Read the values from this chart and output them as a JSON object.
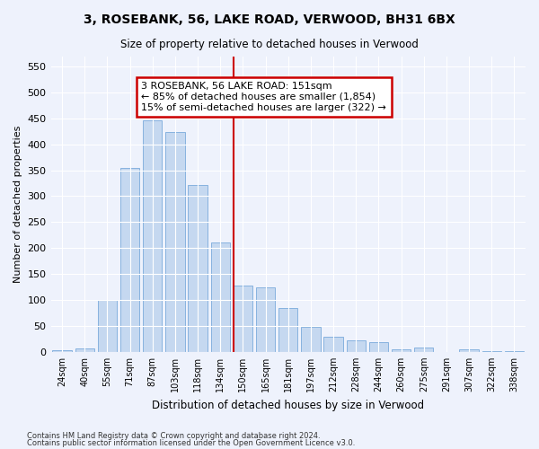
{
  "title": "3, ROSEBANK, 56, LAKE ROAD, VERWOOD, BH31 6BX",
  "subtitle": "Size of property relative to detached houses in Verwood",
  "xlabel": "Distribution of detached houses by size in Verwood",
  "ylabel": "Number of detached properties",
  "categories": [
    "24sqm",
    "40sqm",
    "55sqm",
    "71sqm",
    "87sqm",
    "103sqm",
    "118sqm",
    "134sqm",
    "150sqm",
    "165sqm",
    "181sqm",
    "197sqm",
    "212sqm",
    "228sqm",
    "244sqm",
    "260sqm",
    "275sqm",
    "291sqm",
    "307sqm",
    "322sqm",
    "338sqm"
  ],
  "values": [
    3,
    7,
    100,
    354,
    447,
    423,
    321,
    210,
    128,
    125,
    85,
    48,
    29,
    22,
    18,
    5,
    9,
    0,
    4,
    1,
    2
  ],
  "bar_color": "#c5d8f0",
  "bar_edge_color": "#7aaadb",
  "vline_color": "#cc0000",
  "annotation_text": "3 ROSEBANK, 56 LAKE ROAD: 151sqm\n← 85% of detached houses are smaller (1,854)\n15% of semi-detached houses are larger (322) →",
  "annotation_box_color": "#cc0000",
  "bg_color": "#eef2fc",
  "footnote1": "Contains HM Land Registry data © Crown copyright and database right 2024.",
  "footnote2": "Contains public sector information licensed under the Open Government Licence v3.0.",
  "ylim": [
    0,
    570
  ],
  "yticks": [
    0,
    50,
    100,
    150,
    200,
    250,
    300,
    350,
    400,
    450,
    500,
    550
  ]
}
